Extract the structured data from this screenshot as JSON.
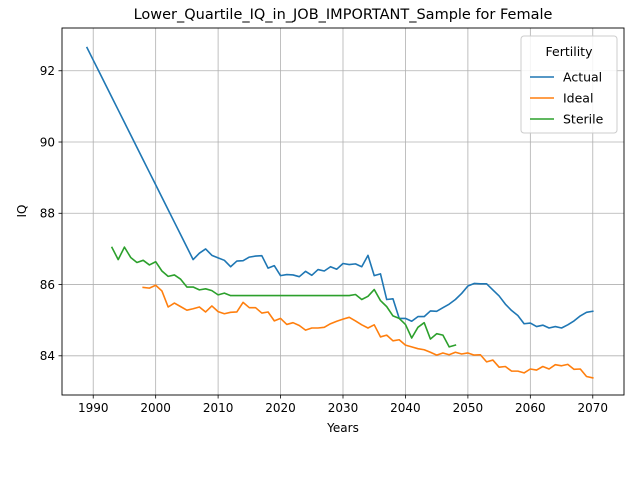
{
  "chart_data": {
    "type": "line",
    "title": "Lower_Quartile_IQ_in_JOB_IMPORTANT_Sample for Female",
    "xlabel": "Years",
    "ylabel": "IQ",
    "xlim": [
      1985,
      2075
    ],
    "ylim": [
      82.9,
      93.2
    ],
    "xticks": [
      1990,
      2000,
      2010,
      2020,
      2030,
      2040,
      2050,
      2060,
      2070
    ],
    "yticks": [
      84,
      86,
      88,
      90,
      92
    ],
    "grid": true,
    "legend": {
      "title": "Fertility",
      "placement": "top-right"
    },
    "series": [
      {
        "name": "Actual",
        "color": "#1f77b4",
        "x": [
          1989,
          1990,
          1991,
          1992,
          1993,
          1994,
          1995,
          1996,
          1997,
          1998,
          1999,
          2000,
          2001,
          2002,
          2003,
          2004,
          2005,
          2006,
          2007,
          2008,
          2009,
          2010,
          2011,
          2012,
          2013,
          2014,
          2015,
          2016,
          2017,
          2018,
          2019,
          2020,
          2021,
          2022,
          2023,
          2024,
          2025,
          2026,
          2027,
          2028,
          2029,
          2030,
          2031,
          2032,
          2033,
          2034,
          2035,
          2036,
          2037,
          2038,
          2039,
          2040,
          2041,
          2042,
          2043,
          2044,
          2045,
          2046,
          2047,
          2048,
          2049,
          2050,
          2051,
          2052,
          2053,
          2054,
          2055,
          2056,
          2057,
          2058,
          2059,
          2060,
          2061,
          2062,
          2063,
          2064,
          2065,
          2066,
          2067,
          2068,
          2069,
          2070
        ],
        "values": [
          92.65,
          92.3,
          91.95,
          91.6,
          91.25,
          90.9,
          90.55,
          90.2,
          89.85,
          89.5,
          89.15,
          88.8,
          88.45,
          88.1,
          87.75,
          87.4,
          87.05,
          86.7,
          86.88,
          87.0,
          86.82,
          86.75,
          86.68,
          86.5,
          86.66,
          86.67,
          86.77,
          86.8,
          86.81,
          86.46,
          86.53,
          86.25,
          86.28,
          86.27,
          86.22,
          86.37,
          86.26,
          86.42,
          86.38,
          86.5,
          86.43,
          86.59,
          86.56,
          86.58,
          86.5,
          86.82,
          86.25,
          86.3,
          85.58,
          85.6,
          85.05,
          85.05,
          84.97,
          85.1,
          85.1,
          85.26,
          85.25,
          85.35,
          85.45,
          85.58,
          85.75,
          85.96,
          86.03,
          86.02,
          86.02,
          85.85,
          85.68,
          85.45,
          85.27,
          85.13,
          84.9,
          84.92,
          84.82,
          84.86,
          84.78,
          84.82,
          84.78,
          84.87,
          84.98,
          85.12,
          85.22,
          85.25
        ]
      },
      {
        "name": "Ideal",
        "color": "#ff7f0e",
        "x": [
          1998,
          1999,
          2000,
          2001,
          2002,
          2003,
          2004,
          2005,
          2006,
          2007,
          2008,
          2009,
          2010,
          2011,
          2012,
          2013,
          2014,
          2015,
          2016,
          2017,
          2018,
          2019,
          2020,
          2021,
          2022,
          2023,
          2024,
          2025,
          2026,
          2027,
          2028,
          2029,
          2030,
          2031,
          2032,
          2033,
          2034,
          2035,
          2036,
          2037,
          2038,
          2039,
          2040,
          2041,
          2042,
          2043,
          2044,
          2045,
          2046,
          2047,
          2048,
          2049,
          2050,
          2051,
          2052,
          2053,
          2054,
          2055,
          2056,
          2057,
          2058,
          2059,
          2060,
          2061,
          2062,
          2063,
          2064,
          2065,
          2066,
          2067,
          2068,
          2069,
          2070
        ],
        "values": [
          85.92,
          85.9,
          85.98,
          85.82,
          85.37,
          85.48,
          85.38,
          85.28,
          85.32,
          85.37,
          85.23,
          85.4,
          85.24,
          85.18,
          85.22,
          85.23,
          85.5,
          85.35,
          85.35,
          85.2,
          85.23,
          84.98,
          85.05,
          84.88,
          84.93,
          84.85,
          84.72,
          84.78,
          84.78,
          84.8,
          84.9,
          84.97,
          85.03,
          85.08,
          84.98,
          84.87,
          84.78,
          84.87,
          84.53,
          84.58,
          84.42,
          84.45,
          84.3,
          84.25,
          84.2,
          84.17,
          84.1,
          84.02,
          84.08,
          84.03,
          84.1,
          84.05,
          84.08,
          84.02,
          84.03,
          83.83,
          83.88,
          83.68,
          83.7,
          83.57,
          83.57,
          83.52,
          83.63,
          83.6,
          83.7,
          83.63,
          83.75,
          83.72,
          83.76,
          83.62,
          83.63,
          83.42,
          83.38
        ]
      },
      {
        "name": "Sterile",
        "color": "#2ca02c",
        "x": [
          1993,
          1994,
          1995,
          1996,
          1997,
          1998,
          1999,
          2000,
          2001,
          2002,
          2003,
          2004,
          2005,
          2006,
          2007,
          2008,
          2009,
          2010,
          2011,
          2012,
          2013,
          2014,
          2015,
          2016,
          2017,
          2018,
          2019,
          2020,
          2021,
          2022,
          2023,
          2024,
          2025,
          2026,
          2027,
          2028,
          2029,
          2030,
          2031,
          2032,
          2033,
          2034,
          2035,
          2036,
          2037,
          2038,
          2039,
          2040,
          2041,
          2042,
          2043,
          2044,
          2045,
          2046,
          2047,
          2048
        ],
        "values": [
          87.04,
          86.7,
          87.05,
          86.76,
          86.62,
          86.68,
          86.55,
          86.64,
          86.38,
          86.23,
          86.27,
          86.15,
          85.93,
          85.93,
          85.85,
          85.88,
          85.83,
          85.71,
          85.76,
          85.69,
          85.69,
          85.69,
          85.69,
          85.69,
          85.69,
          85.69,
          85.69,
          85.69,
          85.69,
          85.69,
          85.69,
          85.69,
          85.69,
          85.69,
          85.69,
          85.69,
          85.69,
          85.69,
          85.69,
          85.72,
          85.58,
          85.67,
          85.86,
          85.55,
          85.38,
          85.12,
          85.05,
          84.88,
          84.5,
          84.8,
          84.93,
          84.47,
          84.62,
          84.58,
          84.25,
          84.3
        ]
      }
    ]
  }
}
